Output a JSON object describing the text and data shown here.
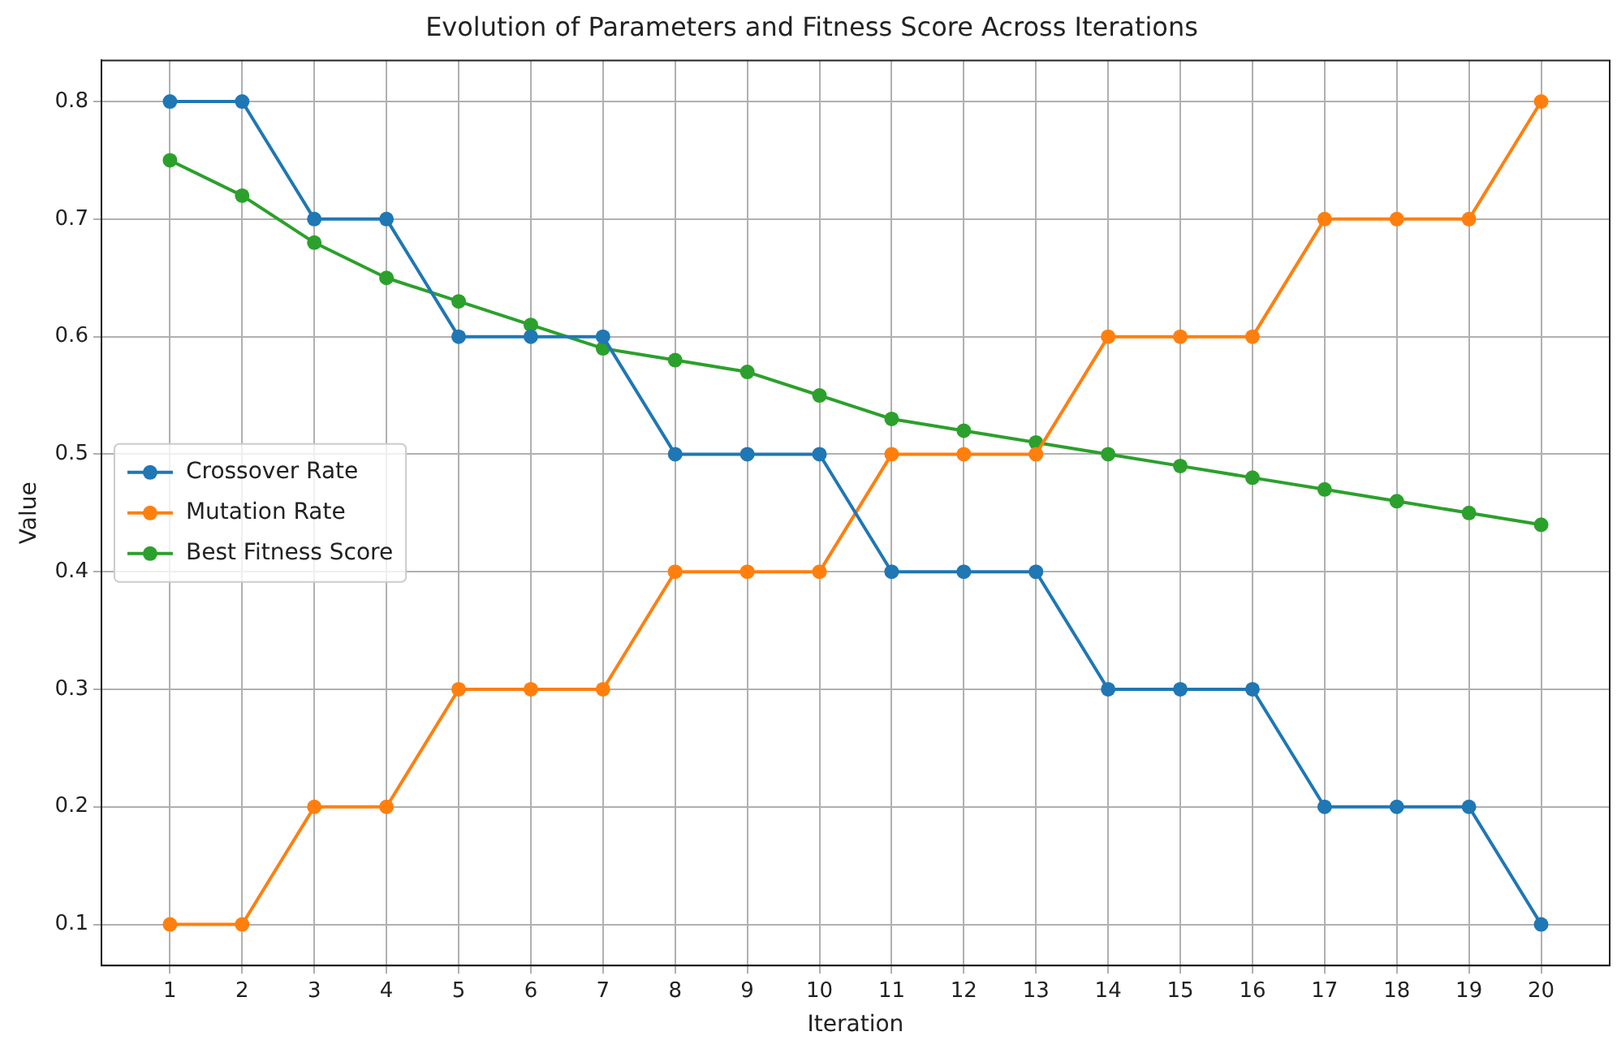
{
  "chart_data": {
    "type": "line",
    "title": "Evolution of Parameters and Fitness Score Across Iterations",
    "xlabel": "Iteration",
    "ylabel": "Value",
    "x": [
      1,
      2,
      3,
      4,
      5,
      6,
      7,
      8,
      9,
      10,
      11,
      12,
      13,
      14,
      15,
      16,
      17,
      18,
      19,
      20
    ],
    "series": [
      {
        "name": "Crossover Rate",
        "color": "#1f77b4",
        "values": [
          0.8,
          0.8,
          0.7,
          0.7,
          0.6,
          0.6,
          0.6,
          0.5,
          0.5,
          0.5,
          0.4,
          0.4,
          0.4,
          0.3,
          0.3,
          0.3,
          0.2,
          0.2,
          0.2,
          0.1
        ]
      },
      {
        "name": "Mutation Rate",
        "color": "#ff7f0e",
        "values": [
          0.1,
          0.1,
          0.2,
          0.2,
          0.3,
          0.3,
          0.3,
          0.4,
          0.4,
          0.4,
          0.5,
          0.5,
          0.5,
          0.6,
          0.6,
          0.6,
          0.7,
          0.7,
          0.7,
          0.8
        ]
      },
      {
        "name": "Best Fitness Score",
        "color": "#2ca02c",
        "values": [
          0.75,
          0.72,
          0.68,
          0.65,
          0.63,
          0.61,
          0.59,
          0.58,
          0.57,
          0.55,
          0.53,
          0.52,
          0.51,
          0.5,
          0.49,
          0.48,
          0.47,
          0.46,
          0.45,
          0.44
        ]
      }
    ],
    "xlim": [
      0.05,
      20.95
    ],
    "xticks": [
      1,
      2,
      3,
      4,
      5,
      6,
      7,
      8,
      9,
      10,
      11,
      12,
      13,
      14,
      15,
      16,
      17,
      18,
      19,
      20
    ],
    "ylim": [
      0.065,
      0.835
    ],
    "yticks": [
      0.1,
      0.2,
      0.3,
      0.4,
      0.5,
      0.6,
      0.7,
      0.8
    ],
    "grid": true,
    "legend": "center left",
    "marker": "circle",
    "line_style": "solid"
  }
}
